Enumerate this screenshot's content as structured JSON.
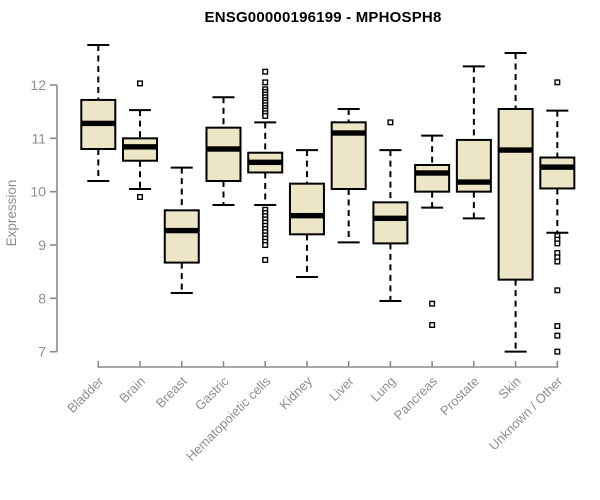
{
  "header": {
    "title": "ENSG00000196199 - MPHOSPH8"
  },
  "chart_data": {
    "type": "boxplot",
    "title": "ENSG00000196199 - MPHOSPH8",
    "xlabel": "",
    "ylabel": "Expression",
    "ylim": [
      6.8,
      12.9
    ],
    "yticks": [
      7,
      8,
      9,
      10,
      11,
      12
    ],
    "grid": false,
    "legend": false,
    "categories": [
      "Bladder",
      "Brain",
      "Breast",
      "Gastric",
      "Hematopoietic cells",
      "Kidney",
      "Liver",
      "Lung",
      "Pancreas",
      "Prostate",
      "Skin",
      "Unknown / Other"
    ],
    "series": [
      {
        "category": "Bladder",
        "whisker_low": 10.2,
        "q1": 10.8,
        "median": 11.28,
        "q3": 11.72,
        "whisker_high": 12.75,
        "outliers": []
      },
      {
        "category": "Brain",
        "whisker_low": 10.05,
        "q1": 10.58,
        "median": 10.84,
        "q3": 11.0,
        "whisker_high": 11.53,
        "outliers": [
          12.03,
          9.9
        ]
      },
      {
        "category": "Breast",
        "whisker_low": 8.1,
        "q1": 8.67,
        "median": 9.27,
        "q3": 9.65,
        "whisker_high": 10.45,
        "outliers": []
      },
      {
        "category": "Gastric",
        "whisker_low": 9.75,
        "q1": 10.2,
        "median": 10.8,
        "q3": 11.2,
        "whisker_high": 11.77,
        "outliers": []
      },
      {
        "category": "Hematopoietic cells",
        "whisker_low": 9.75,
        "q1": 10.36,
        "median": 10.55,
        "q3": 10.73,
        "whisker_high": 11.3,
        "outliers": [
          12.25,
          12.05,
          11.92,
          11.87,
          11.82,
          11.77,
          11.72,
          11.67,
          11.62,
          11.57,
          11.52,
          11.47,
          11.42,
          9.66,
          9.6,
          9.54,
          9.48,
          9.42,
          9.36,
          9.3,
          9.24,
          9.18,
          9.12,
          9.06,
          9.0,
          8.72
        ]
      },
      {
        "category": "Kidney",
        "whisker_low": 8.4,
        "q1": 9.2,
        "median": 9.55,
        "q3": 10.15,
        "whisker_high": 10.78,
        "outliers": []
      },
      {
        "category": "Liver",
        "whisker_low": 9.05,
        "q1": 10.05,
        "median": 11.1,
        "q3": 11.3,
        "whisker_high": 11.55,
        "outliers": []
      },
      {
        "category": "Lung",
        "whisker_low": 7.95,
        "q1": 9.03,
        "median": 9.5,
        "q3": 9.8,
        "whisker_high": 10.78,
        "outliers": [
          11.3
        ]
      },
      {
        "category": "Pancreas",
        "whisker_low": 9.7,
        "q1": 10.0,
        "median": 10.35,
        "q3": 10.5,
        "whisker_high": 11.05,
        "outliers": [
          7.9,
          7.5
        ]
      },
      {
        "category": "Prostate",
        "whisker_low": 9.5,
        "q1": 10.0,
        "median": 10.18,
        "q3": 10.97,
        "whisker_high": 12.35,
        "outliers": []
      },
      {
        "category": "Skin",
        "whisker_low": 7.0,
        "q1": 8.35,
        "median": 10.78,
        "q3": 11.55,
        "whisker_high": 12.6,
        "outliers": []
      },
      {
        "category": "Unknown / Other",
        "whisker_low": 9.23,
        "q1": 10.06,
        "median": 10.46,
        "q3": 10.64,
        "whisker_high": 11.52,
        "outliers": [
          12.05,
          9.17,
          9.1,
          9.03,
          8.85,
          8.77,
          8.69,
          8.15,
          7.48,
          7.3,
          7.0
        ]
      }
    ],
    "colors": {
      "box_fill": "#EDE6C6",
      "box_stroke": "#000000",
      "median": "#000000",
      "whisker": "#000000",
      "outlier_stroke": "#000000",
      "outlier_fill": "#ffffff",
      "axis": "#8B8B8B",
      "tick_label": "#8E8E8E",
      "title": "#000000"
    }
  }
}
